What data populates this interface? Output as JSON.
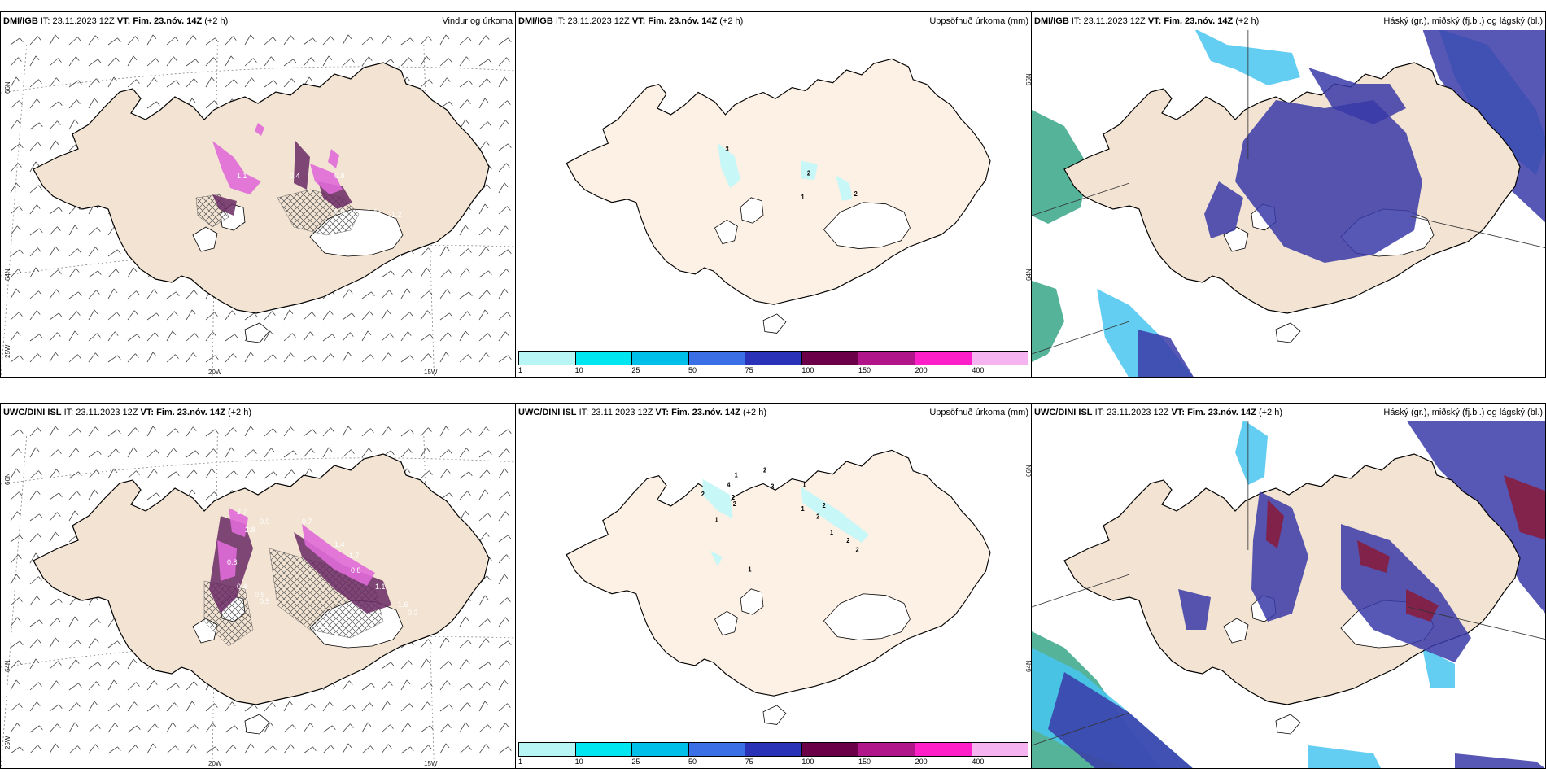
{
  "panels": [
    {
      "id": "p1",
      "model": "DMI/IGB",
      "it_text": "IT: 23.11.2023 12Z",
      "vt_label": "VT:",
      "vt_text": "Fim. 23.nóv. 14Z",
      "lead": "(+2 h)",
      "title": "Vindur og úrkoma",
      "type": "wind"
    },
    {
      "id": "p2",
      "model": "DMI/IGB",
      "it_text": "IT: 23.11.2023 12Z",
      "vt_label": "VT:",
      "vt_text": "Fim. 23.nóv. 14Z",
      "lead": "(+2 h)",
      "title": "Uppsöfnuð úrkoma (mm)",
      "type": "accum"
    },
    {
      "id": "p3",
      "model": "DMI/IGB",
      "it_text": "IT: 23.11.2023 12Z",
      "vt_label": "VT:",
      "vt_text": "Fim. 23.nóv. 14Z",
      "lead": "(+2 h)",
      "title": "Háský (gr.), miðský (fj.bl.) og lágský (bl.)",
      "type": "cloud"
    },
    {
      "id": "p4",
      "model": "UWC/DINI ISL",
      "it_text": "IT: 23.11.2023 12Z",
      "vt_label": "VT:",
      "vt_text": "Fim. 23.nóv. 14Z",
      "lead": "(+2 h)",
      "title": "",
      "type": "wind"
    },
    {
      "id": "p5",
      "model": "UWC/DINI ISL",
      "it_text": "IT: 23.11.2023 12Z",
      "vt_label": "VT:",
      "vt_text": "Fim. 23.nóv. 14Z",
      "lead": "(+2 h)",
      "title": "Uppsöfnuð úrkoma (mm)",
      "type": "accum"
    },
    {
      "id": "p6",
      "model": "UWC/DINI ISL",
      "it_text": "IT: 23.11.2023 12Z",
      "vt_label": "VT:",
      "vt_text": "Fim. 23.nóv. 14Z",
      "lead": "(+2 h)",
      "title": "Háský (gr.), miðský (fj.bl.) og lágský (bl.)",
      "type": "cloud"
    }
  ],
  "axis_labels": {
    "lon_20w": "20W",
    "lon_15w": "15W",
    "lat_66n": "66N",
    "lat_64n": "64N",
    "lat_25w": "25W"
  },
  "colorbar": {
    "levels": [
      "1",
      "10",
      "25",
      "50",
      "75",
      "100",
      "150",
      "200",
      "400"
    ],
    "colors": [
      "#b8f5f5",
      "#00e6f0",
      "#00bfe8",
      "#3a6fe6",
      "#2a32b8",
      "#6b0048",
      "#b0158a",
      "#ff1fc8",
      "#f5b4f0"
    ]
  },
  "accum_labels_top": [
    "3",
    "2",
    "1",
    "2"
  ],
  "accum_labels_bottom": [
    "1",
    "2",
    "2",
    "4",
    "2",
    "1",
    "3",
    "2",
    "1",
    "1",
    "2",
    "2",
    "1",
    "2",
    "2",
    "1"
  ],
  "wind_labels_top": [
    "1.1",
    "0.4",
    "0.8",
    "1.4",
    "0.8",
    "1.2"
  ],
  "wind_labels_bottom": [
    "2.7",
    "0.9",
    "2.8",
    "0.8",
    "0.4",
    "0.7",
    "0.5",
    "1.4",
    "1.7",
    "0.8",
    "1.1",
    "1.6",
    "0.3",
    "0.5",
    "0.3"
  ],
  "colors": {
    "land": "#f2e3d2",
    "land_accum": "#fdf0e4",
    "glacier": "#ffffff",
    "precip_light": "#e06ad8",
    "precip_dark": "#6a2a64",
    "cloud_mid": "#3a3aa8",
    "cloud_low": "#48c6f0",
    "cloud_high": "#2aa080",
    "cloud_red": "#8a1a3a"
  }
}
